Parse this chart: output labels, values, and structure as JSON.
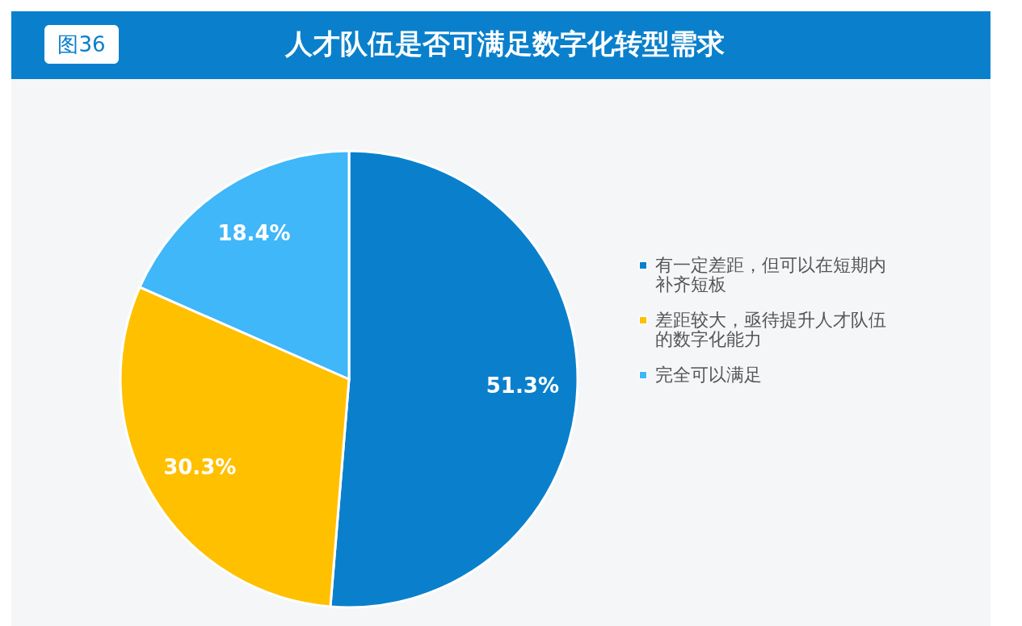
{
  "chart_data": {
    "type": "pie",
    "title": "人才队伍是否可满足数字化转型需求",
    "annotations": [
      "图36"
    ],
    "categories": [
      "有一定差距，但可以在短期内补齐短板",
      "差距较大，亟待提升人才队伍的数字化能力",
      "完全可以满足"
    ],
    "values": [
      51.3,
      30.3,
      18.4
    ],
    "colors": [
      "#0a80cc",
      "#ffc000",
      "#3fb7f9"
    ],
    "value_labels": [
      "51.3%",
      "30.3%",
      "18.4%"
    ],
    "legend": "right"
  }
}
